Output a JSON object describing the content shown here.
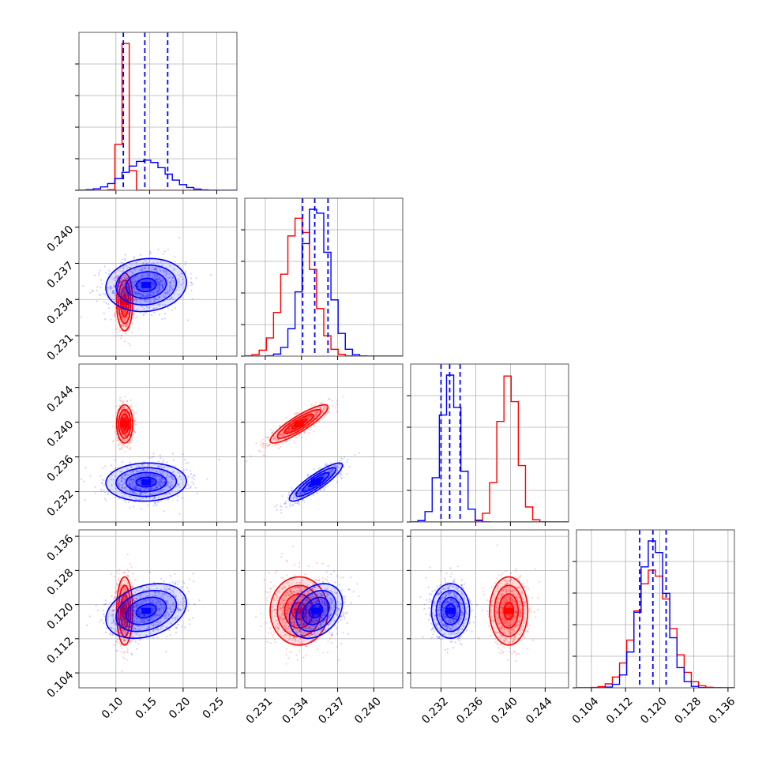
{
  "colors": {
    "series_a": "#ff0000",
    "series_b": "#0000ff",
    "grid": "#b0b0b0",
    "frame": "#555555"
  },
  "chart_data": {
    "type": "corner",
    "grid": true,
    "parameters": [
      {
        "ticks": [
          0.1,
          0.15,
          0.2,
          0.25
        ],
        "tick_labels": [
          "0.10",
          "0.15",
          "0.20",
          "0.25"
        ],
        "range": [
          0.045,
          0.28
        ]
      },
      {
        "ticks": [
          0.231,
          0.234,
          0.237,
          0.24
        ],
        "tick_labels": [
          "0.231",
          "0.234",
          "0.237",
          "0.240"
        ],
        "range": [
          0.2293,
          0.2424
        ]
      },
      {
        "ticks": [
          0.232,
          0.236,
          0.24,
          0.244
        ],
        "tick_labels": [
          "0.232",
          "0.236",
          "0.240",
          "0.244"
        ],
        "range": [
          0.2285,
          0.2467
        ]
      },
      {
        "ticks": [
          0.104,
          0.112,
          0.12,
          0.128,
          0.136
        ],
        "tick_labels": [
          "0.104",
          "0.112",
          "0.120",
          "0.128",
          "0.136"
        ],
        "range": [
          0.1005,
          0.1375
        ]
      }
    ],
    "series": [
      {
        "color": "red",
        "means": [
          0.113,
          0.2338,
          0.2398,
          0.1185
        ],
        "sigmas": [
          0.006,
          0.0012,
          0.0011,
          0.004
        ],
        "correlations": {
          "1-0": 0.0,
          "2-0": 0.0,
          "2-1": 0.88,
          "3-0": 0.0,
          "3-1": 0.0,
          "3-2": 0.0
        }
      },
      {
        "color": "blue",
        "means": [
          0.145,
          0.2352,
          0.2331,
          0.1185
        ],
        "sigmas": [
          0.03,
          0.0011,
          0.0011,
          0.0032
        ],
        "correlations": {
          "1-0": 0.1,
          "2-0": 0.05,
          "2-1": 0.88,
          "3-0": 0.3,
          "3-1": 0.3,
          "3-2": 0.0
        },
        "quantiles": [
          [
            0.111,
            0.143,
            0.177
          ],
          [
            0.2341,
            0.2351,
            0.2362
          ],
          [
            0.232,
            0.233,
            0.2342
          ],
          [
            0.1153,
            0.1184,
            0.1215
          ]
        ]
      }
    ]
  }
}
